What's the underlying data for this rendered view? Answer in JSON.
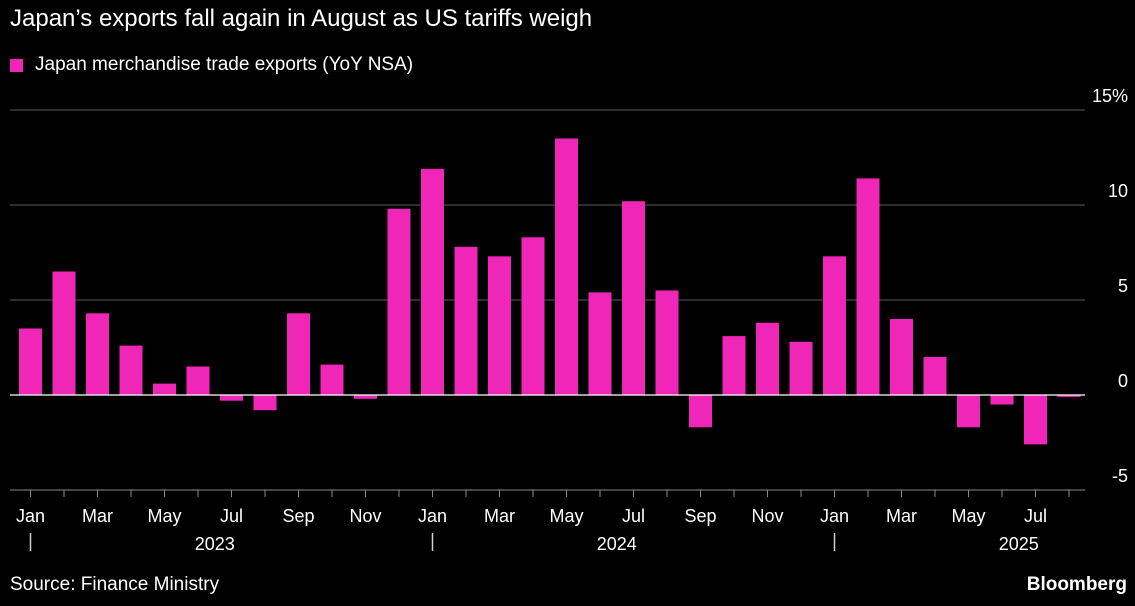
{
  "header": {
    "title": "Japan’s exports fall again in August as US tariffs weigh"
  },
  "legend": {
    "label": "Japan merchandise trade exports (YoY NSA)",
    "color": "#f026b8"
  },
  "footer": {
    "source": "Source: Finance Ministry",
    "brand": "Bloomberg"
  },
  "chart_data": {
    "type": "bar",
    "title": "Japan’s exports fall again in August as US tariffs weigh",
    "xlabel": "",
    "ylabel": "",
    "ylim": [
      -5,
      15
    ],
    "yticks": [
      {
        "value": 15,
        "label": "15%"
      },
      {
        "value": 10,
        "label": "10"
      },
      {
        "value": 5,
        "label": "5"
      },
      {
        "value": 0,
        "label": "0"
      },
      {
        "value": -5,
        "label": "-5"
      }
    ],
    "categories": [
      "Jan 2023",
      "Feb 2023",
      "Mar 2023",
      "Apr 2023",
      "May 2023",
      "Jun 2023",
      "Jul 2023",
      "Aug 2023",
      "Sep 2023",
      "Oct 2023",
      "Nov 2023",
      "Dec 2023",
      "Jan 2024",
      "Feb 2024",
      "Mar 2024",
      "Apr 2024",
      "May 2024",
      "Jun 2024",
      "Jul 2024",
      "Aug 2024",
      "Sep 2024",
      "Oct 2024",
      "Nov 2024",
      "Dec 2024",
      "Jan 2025",
      "Feb 2025",
      "Mar 2025",
      "Apr 2025",
      "May 2025",
      "Jun 2025",
      "Jul 2025",
      "Aug 2025"
    ],
    "series": [
      {
        "name": "Japan merchandise trade exports (YoY NSA)",
        "values": [
          3.5,
          6.5,
          4.3,
          2.6,
          0.6,
          1.5,
          -0.3,
          -0.8,
          4.3,
          1.6,
          -0.2,
          9.8,
          11.9,
          7.8,
          7.3,
          8.3,
          13.5,
          5.4,
          10.2,
          5.5,
          -1.7,
          3.1,
          3.8,
          2.8,
          7.3,
          11.4,
          4.0,
          2.0,
          -1.7,
          -0.5,
          -2.6,
          -0.1
        ]
      }
    ],
    "month_labels": [
      {
        "index": 0,
        "label": "Jan"
      },
      {
        "index": 2,
        "label": "Mar"
      },
      {
        "index": 4,
        "label": "May"
      },
      {
        "index": 6,
        "label": "Jul"
      },
      {
        "index": 8,
        "label": "Sep"
      },
      {
        "index": 10,
        "label": "Nov"
      },
      {
        "index": 12,
        "label": "Jan"
      },
      {
        "index": 14,
        "label": "Mar"
      },
      {
        "index": 16,
        "label": "May"
      },
      {
        "index": 18,
        "label": "Jul"
      },
      {
        "index": 20,
        "label": "Sep"
      },
      {
        "index": 22,
        "label": "Nov"
      },
      {
        "index": 24,
        "label": "Jan"
      },
      {
        "index": 26,
        "label": "Mar"
      },
      {
        "index": 28,
        "label": "May"
      },
      {
        "index": 30,
        "label": "Jul"
      }
    ],
    "year_labels": [
      {
        "start": 0,
        "end": 11,
        "label": "2023"
      },
      {
        "start": 12,
        "end": 23,
        "label": "2024"
      },
      {
        "start": 24,
        "end": 31,
        "label": "2025"
      }
    ],
    "grid": true
  }
}
